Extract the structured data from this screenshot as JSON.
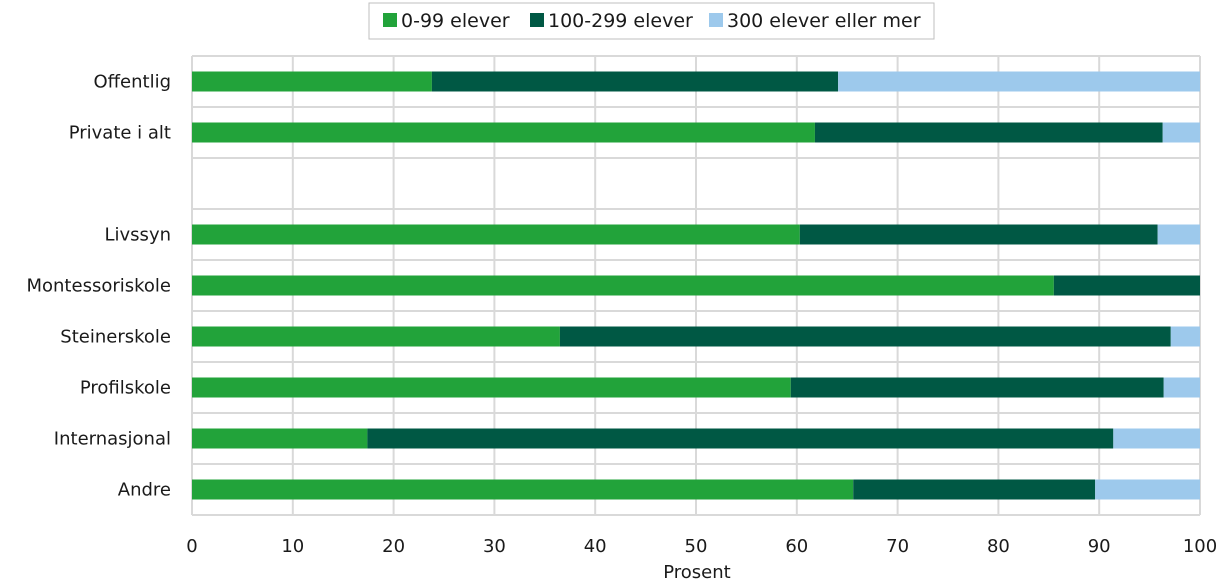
{
  "chart_data": {
    "type": "bar",
    "orientation": "horizontal",
    "stacked": true,
    "categories": [
      "Offentlig",
      "Private i alt",
      "",
      "Livssyn",
      "Montessoriskole",
      "Steinerskole",
      "Profilskole",
      "Internasjonal",
      "Andre"
    ],
    "series": [
      {
        "name": "0-99 elever",
        "color": "#22a33a",
        "values": [
          23.8,
          61.8,
          null,
          60.3,
          85.5,
          36.5,
          59.4,
          17.4,
          65.6
        ]
      },
      {
        "name": "100-299 elever",
        "color": "#005844",
        "values": [
          40.3,
          34.5,
          null,
          35.5,
          14.5,
          60.6,
          37.0,
          74.0,
          24.0
        ]
      },
      {
        "name": "300 elever eller mer",
        "color": "#9dc9ec",
        "values": [
          35.9,
          3.7,
          null,
          4.2,
          0.0,
          2.9,
          3.6,
          8.6,
          10.4
        ]
      }
    ],
    "xlabel": "Prosent",
    "ylabel": "",
    "xlim": [
      0,
      100
    ],
    "xticks": [
      0,
      10,
      20,
      30,
      40,
      50,
      60,
      70,
      80,
      90,
      100
    ],
    "grid": true,
    "legend_position": "top-center"
  }
}
